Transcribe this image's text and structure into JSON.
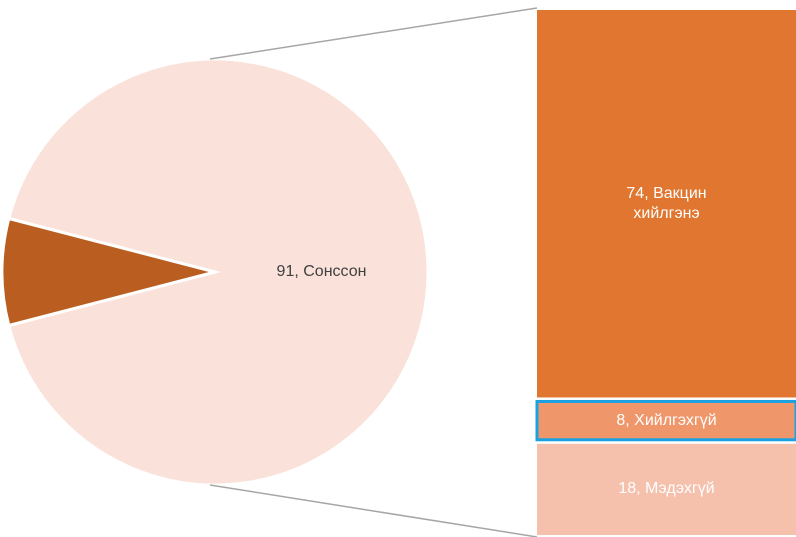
{
  "chart_data": [
    {
      "type": "pie",
      "values": [
        91,
        8
      ],
      "value_labels": [
        "91, Сонссон",
        null
      ],
      "colors": [
        "#fae1d9",
        "#b95e20"
      ],
      "label_color": "#404040"
    },
    {
      "type": "bar",
      "stacked": true,
      "values": [
        74,
        8,
        18
      ],
      "value_labels": [
        "74, Вакцин хийлгэнэ",
        "8, Хийлгэхгүй",
        "18, Мэдэхгүй"
      ],
      "colors": [
        "#e0762f",
        "#f0966b",
        "#f5c1ad"
      ],
      "label_color": "#ffffff",
      "selected": 1,
      "selected_color": "#1ba1e2"
    }
  ]
}
